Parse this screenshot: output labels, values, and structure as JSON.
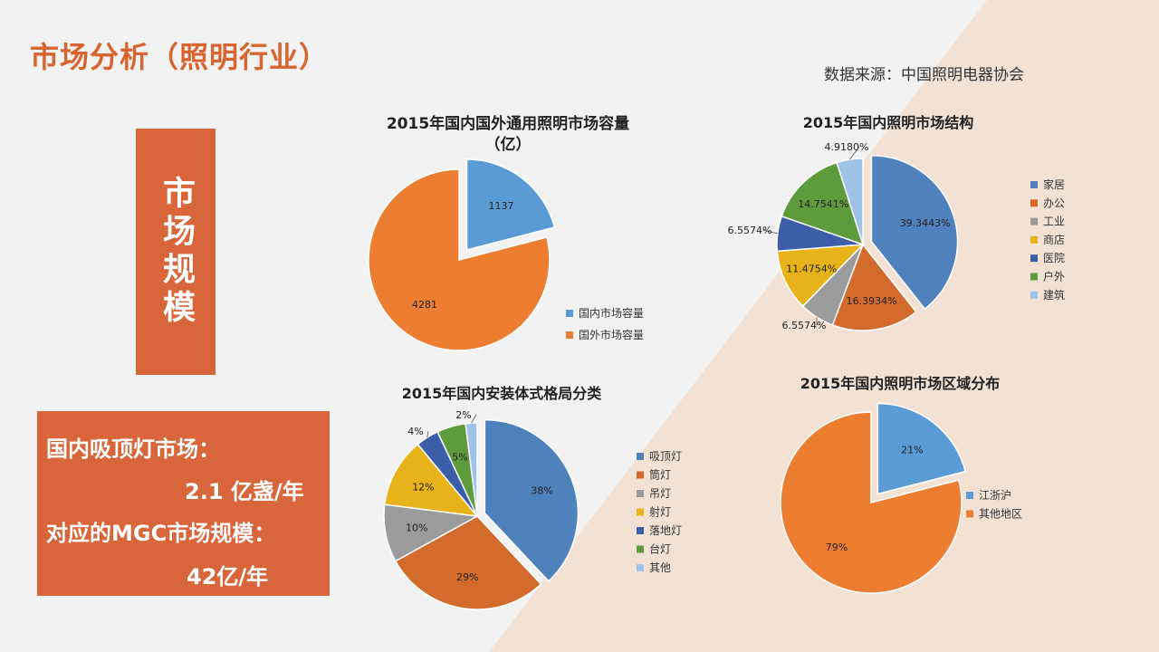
{
  "slide": {
    "title": "市场分析（照明行业）",
    "source": "数据来源：中国照明电器协会",
    "vertical_label": "市场规模",
    "info": {
      "line1": "国内吸顶灯市场：",
      "line2": "2.1 亿盏/年",
      "line3": "对应的MGC市场规模：",
      "line4": "42亿/年"
    },
    "colors": {
      "accent": "#d9653a",
      "title": "#d8642f",
      "background": "#f2f2f2",
      "diagonal": "#f3e2d4"
    }
  },
  "chart_data": [
    {
      "type": "pie",
      "title": "2015年国内国外通用照明市场容量",
      "subtitle": "（亿）",
      "categories": [
        "国内市场容量",
        "国外市场容量"
      ],
      "values": [
        1137,
        4281
      ],
      "labels": [
        "1137",
        "4281"
      ],
      "colors": [
        "#5b9bd5",
        "#ed7d31"
      ],
      "exploded": [
        0
      ],
      "legend": "right"
    },
    {
      "type": "pie",
      "title": "2015年国内照明市场结构",
      "categories": [
        "家居",
        "办公",
        "工业",
        "商店",
        "医院",
        "户外",
        "建筑"
      ],
      "values": [
        39.3443,
        16.3934,
        6.5574,
        11.4754,
        6.5574,
        14.7541,
        4.918
      ],
      "labels": [
        "39.3443%",
        "16.3934%",
        "6.5574%",
        "11.4754%",
        "6.5574%",
        "14.7541%",
        "4.9180%"
      ],
      "colors": [
        "#4f81bd",
        "#d26b2c",
        "#9b9b9b",
        "#e8b21a",
        "#3c5ea8",
        "#5d9b3c",
        "#9fc3e7"
      ],
      "exploded": [
        0
      ],
      "legend": "right"
    },
    {
      "type": "pie",
      "title": "2015年国内安装体式格局分类",
      "categories": [
        "吸顶灯",
        "筒灯",
        "吊灯",
        "射灯",
        "落地灯",
        "台灯",
        "其他"
      ],
      "values": [
        38,
        29,
        10,
        12,
        4,
        5,
        2
      ],
      "labels": [
        "38%",
        "29%",
        "10%",
        "12%",
        "4%",
        "5%",
        "2%"
      ],
      "colors": [
        "#4f81bd",
        "#d26b2c",
        "#9b9b9b",
        "#e8b21a",
        "#3c5ea8",
        "#5d9b3c",
        "#9fc3e7"
      ],
      "exploded": [
        0
      ],
      "legend": "right"
    },
    {
      "type": "pie",
      "title": "2015年国内照明市场区域分布",
      "categories": [
        "江浙沪",
        "其他地区"
      ],
      "values": [
        21,
        79
      ],
      "labels": [
        "21%",
        "79%"
      ],
      "colors": [
        "#5b9bd5",
        "#ed7d31"
      ],
      "exploded": [
        0
      ],
      "legend": "right"
    }
  ]
}
